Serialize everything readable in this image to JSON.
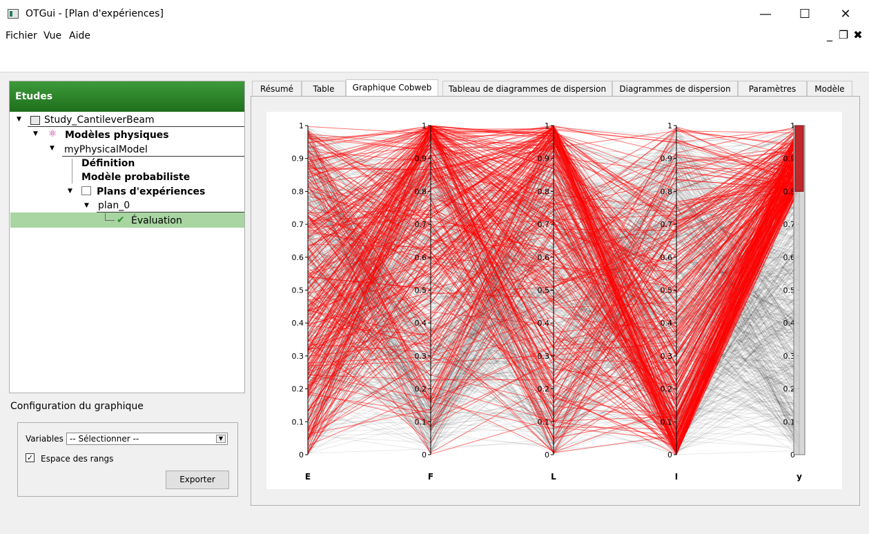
{
  "window": {
    "title": "OTGui - [Plan d'expériences]"
  },
  "menu": {
    "items": [
      "Fichier",
      "Vue",
      "Aide"
    ]
  },
  "left_panel": {
    "header": "Etudes",
    "tree": {
      "study": "Study_CantileverBeam",
      "physical_models": "Modèles physiques",
      "model": "myPhysicalModel",
      "definition": "Définition",
      "probabilistic": "Modèle probabiliste",
      "doe": "Plans d'expériences",
      "plan": "plan_0",
      "evaluation": "Évaluation"
    }
  },
  "config": {
    "title": "Configuration du graphique",
    "variables_label": "Variables",
    "variables_value": "-- Sélectionner --",
    "rank_space_label": "Espace des rangs",
    "rank_space_checked": true,
    "export_button": "Exporter"
  },
  "tabs": [
    "Résumé",
    "Table",
    "Graphique Cobweb",
    "Tableau de diagrammes de dispersion",
    "Diagrammes de dispersion",
    "Paramètres",
    "Modèle"
  ],
  "active_tab": "Graphique Cobweb",
  "chart_data": {
    "type": "parallel-coordinates",
    "axes": [
      "E",
      "F",
      "L",
      "I",
      "y"
    ],
    "ylim": [
      0,
      1
    ],
    "ticks": [
      "0",
      "0.1",
      "0.2",
      "0.3",
      "0.4",
      "0.5",
      "0.6",
      "0.7",
      "0.8",
      "0.9",
      "1"
    ],
    "selection_range_on_y": [
      0.8,
      1.0
    ],
    "colors": {
      "selected": "#ff0000",
      "unselected": "#000000"
    }
  }
}
